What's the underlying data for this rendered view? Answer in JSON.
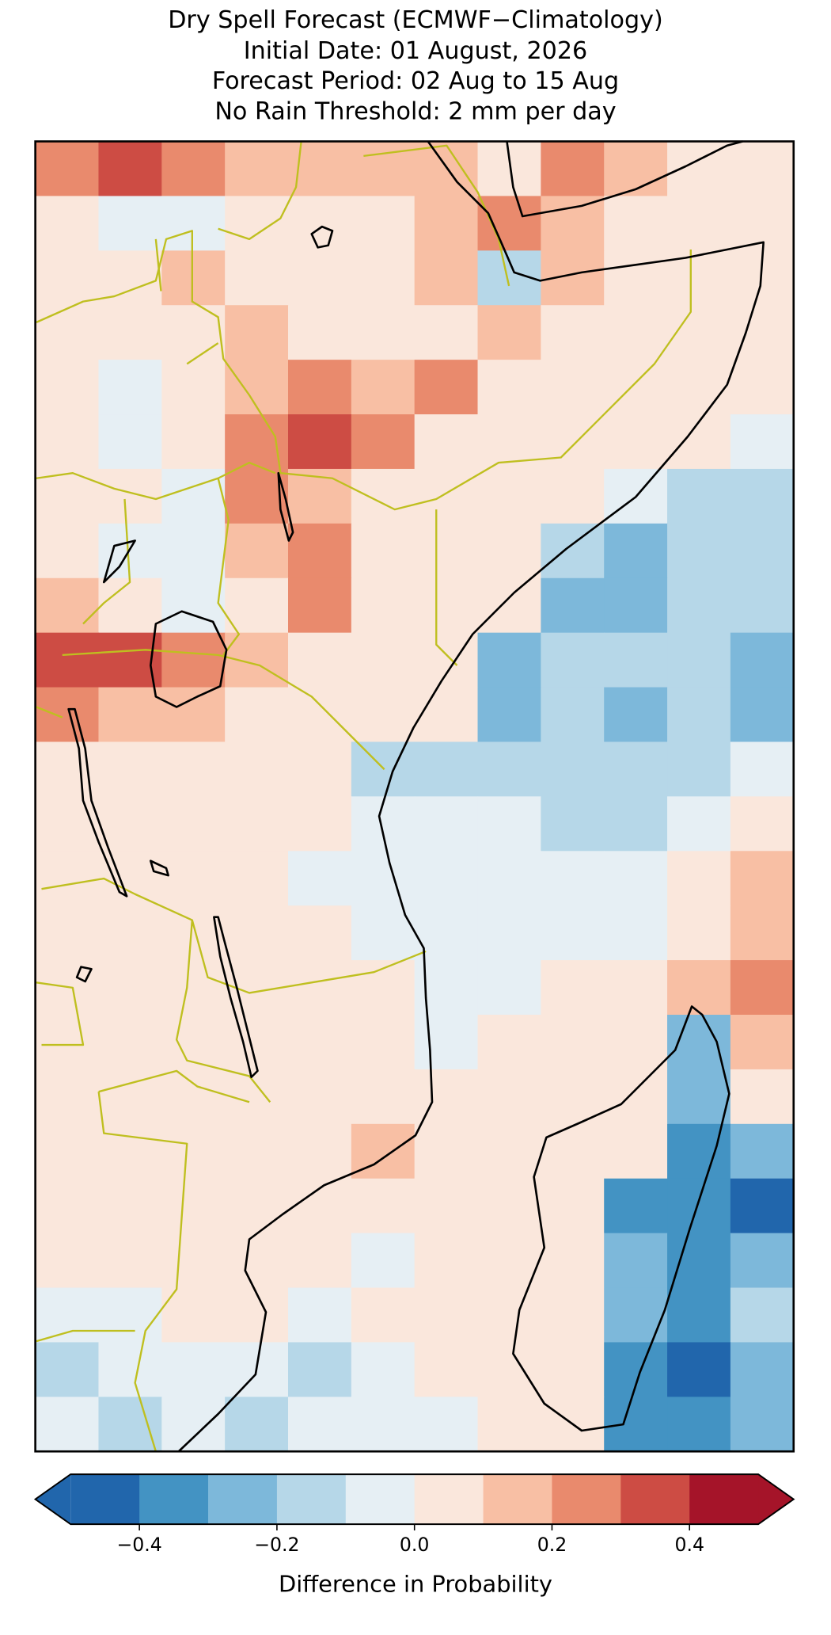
{
  "chart_data": {
    "type": "heatmap",
    "title": [
      "Dry Spell Forecast (ECMWF−Climatology)",
      "Initial Date: 01 August, 2026",
      "Forecast Period: 02 Aug to 15 Aug",
      "No Rain Threshold: 2 mm per day"
    ],
    "grid": [
      [
        0.25,
        0.35,
        0.25,
        0.15,
        0.15,
        0.15,
        0.15,
        0.05,
        0.25,
        0.15,
        0.05,
        0.05
      ],
      [
        0.05,
        -0.05,
        -0.05,
        0.05,
        0.05,
        0.05,
        0.15,
        0.25,
        0.15,
        0.05,
        0.05,
        0.05
      ],
      [
        0.05,
        0.05,
        0.15,
        0.05,
        0.05,
        0.05,
        0.15,
        -0.15,
        0.15,
        0.05,
        0.05,
        0.05
      ],
      [
        0.05,
        0.05,
        0.05,
        0.15,
        0.05,
        0.05,
        0.05,
        0.15,
        0.05,
        0.05,
        0.05,
        0.05
      ],
      [
        0.05,
        -0.05,
        0.05,
        0.15,
        0.25,
        0.15,
        0.25,
        0.05,
        0.05,
        0.05,
        0.05,
        0.05
      ],
      [
        0.05,
        -0.05,
        0.05,
        0.25,
        0.35,
        0.25,
        0.05,
        0.05,
        0.05,
        0.05,
        0.05,
        -0.05
      ],
      [
        0.05,
        0.05,
        -0.05,
        0.25,
        0.15,
        0.05,
        0.05,
        0.05,
        0.05,
        -0.05,
        -0.15,
        -0.15
      ],
      [
        0.05,
        -0.05,
        -0.05,
        0.15,
        0.25,
        0.05,
        0.05,
        0.05,
        -0.15,
        -0.25,
        -0.15,
        -0.15
      ],
      [
        0.15,
        0.05,
        -0.05,
        0.05,
        0.25,
        0.05,
        0.05,
        0.05,
        -0.25,
        -0.25,
        -0.15,
        -0.15
      ],
      [
        0.35,
        0.35,
        0.25,
        0.15,
        0.05,
        0.05,
        0.05,
        -0.25,
        -0.15,
        -0.15,
        -0.15,
        -0.25
      ],
      [
        0.25,
        0.15,
        0.15,
        0.05,
        0.05,
        0.05,
        0.05,
        -0.25,
        -0.15,
        -0.25,
        -0.15,
        -0.25
      ],
      [
        0.05,
        0.05,
        0.05,
        0.05,
        0.05,
        -0.15,
        -0.15,
        -0.15,
        -0.15,
        -0.15,
        -0.15,
        -0.05
      ],
      [
        0.05,
        0.05,
        0.05,
        0.05,
        0.05,
        -0.05,
        -0.05,
        -0.05,
        -0.15,
        -0.15,
        -0.05,
        0.05
      ],
      [
        0.05,
        0.05,
        0.05,
        0.05,
        -0.05,
        -0.05,
        -0.05,
        -0.05,
        -0.05,
        -0.05,
        0.05,
        0.15
      ],
      [
        0.05,
        0.05,
        0.05,
        0.05,
        0.05,
        -0.05,
        -0.05,
        -0.05,
        -0.05,
        -0.05,
        0.05,
        0.15
      ],
      [
        0.05,
        0.05,
        0.05,
        0.05,
        0.05,
        0.05,
        -0.05,
        -0.05,
        0.05,
        0.05,
        0.15,
        0.25
      ],
      [
        0.05,
        0.05,
        0.05,
        0.05,
        0.05,
        0.05,
        -0.05,
        0.05,
        0.05,
        0.05,
        -0.25,
        0.15
      ],
      [
        0.05,
        0.05,
        0.05,
        0.05,
        0.05,
        0.05,
        0.05,
        0.05,
        0.05,
        0.05,
        -0.25,
        0.05
      ],
      [
        0.05,
        0.05,
        0.05,
        0.05,
        0.05,
        0.15,
        0.05,
        0.05,
        0.05,
        0.05,
        -0.35,
        -0.25
      ],
      [
        0.05,
        0.05,
        0.05,
        0.05,
        0.05,
        0.05,
        0.05,
        0.05,
        0.05,
        -0.35,
        -0.35,
        -0.45
      ],
      [
        0.05,
        0.05,
        0.05,
        0.05,
        0.05,
        -0.05,
        0.05,
        0.05,
        0.05,
        -0.25,
        -0.35,
        -0.25
      ],
      [
        -0.05,
        -0.05,
        0.05,
        0.05,
        -0.05,
        0.05,
        0.05,
        0.05,
        0.05,
        -0.25,
        -0.35,
        -0.15
      ],
      [
        -0.15,
        -0.05,
        -0.05,
        -0.05,
        -0.15,
        -0.05,
        0.05,
        0.05,
        0.05,
        -0.35,
        -0.45,
        -0.25
      ],
      [
        -0.05,
        -0.15,
        -0.05,
        -0.15,
        -0.05,
        -0.05,
        -0.05,
        0.05,
        0.05,
        -0.35,
        -0.35,
        -0.25
      ]
    ],
    "colorbar": {
      "label": "Difference in Probability",
      "boundaries": [
        -0.5,
        -0.4,
        -0.3,
        -0.2,
        -0.1,
        0,
        0.1,
        0.2,
        0.3,
        0.4,
        0.5
      ],
      "colors": [
        "#2166ac",
        "#4393c3",
        "#7db8da",
        "#b6d7e8",
        "#e6eff4",
        "#fae7dc",
        "#f8bfa4",
        "#e98a6d",
        "#cd4c44",
        "#a51429"
      ],
      "extend": "both",
      "ticks": [
        {
          "value": -0.4,
          "label": "−0.4"
        },
        {
          "value": -0.2,
          "label": "−0.2"
        },
        {
          "value": 0,
          "label": "0.0"
        },
        0.2,
        0.4
      ]
    }
  }
}
